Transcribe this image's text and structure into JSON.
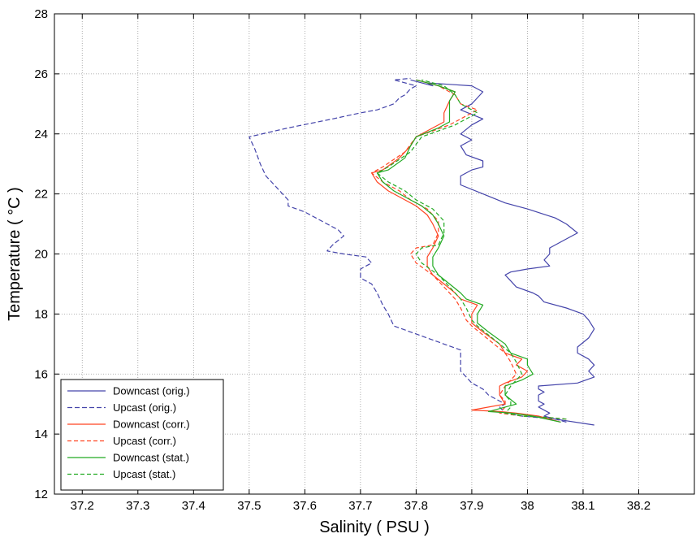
{
  "chart_data": {
    "type": "line",
    "title": "",
    "xlabel": "Salinity ( PSU )",
    "ylabel": "Temperature ( °C )",
    "xlim": [
      37.15,
      38.3
    ],
    "ylim": [
      12,
      28
    ],
    "xticks": [
      "37.2",
      "37.3",
      "37.4",
      "37.5",
      "37.6",
      "37.7",
      "37.8",
      "37.9",
      "38",
      "38.1",
      "38.2"
    ],
    "yticks": [
      "12",
      "14",
      "16",
      "18",
      "20",
      "22",
      "24",
      "26",
      "28"
    ],
    "grid": true,
    "legend_position": "bottom-left",
    "series": [
      {
        "name": "Downcast (orig.)",
        "color": "#4444aa",
        "dash": "solid",
        "points": [
          [
            38.12,
            14.3
          ],
          [
            38.05,
            14.5
          ],
          [
            38.03,
            14.6
          ],
          [
            38.04,
            14.7
          ],
          [
            38.02,
            14.9
          ],
          [
            38.03,
            15.0
          ],
          [
            38.02,
            15.1
          ],
          [
            38.02,
            15.2
          ],
          [
            38.02,
            15.3
          ],
          [
            38.03,
            15.4
          ],
          [
            38.02,
            15.5
          ],
          [
            38.02,
            15.6
          ],
          [
            38.09,
            15.7
          ],
          [
            38.12,
            15.9
          ],
          [
            38.11,
            16.1
          ],
          [
            38.12,
            16.3
          ],
          [
            38.11,
            16.5
          ],
          [
            38.09,
            16.7
          ],
          [
            38.09,
            16.9
          ],
          [
            38.11,
            17.2
          ],
          [
            38.12,
            17.5
          ],
          [
            38.11,
            17.8
          ],
          [
            38.1,
            18.0
          ],
          [
            38.07,
            18.2
          ],
          [
            38.03,
            18.4
          ],
          [
            38.02,
            18.6
          ],
          [
            38.01,
            18.7
          ],
          [
            37.98,
            18.9
          ],
          [
            37.97,
            19.1
          ],
          [
            37.96,
            19.3
          ],
          [
            37.97,
            19.4
          ],
          [
            38.0,
            19.5
          ],
          [
            38.04,
            19.6
          ],
          [
            38.03,
            19.8
          ],
          [
            38.04,
            20.0
          ],
          [
            38.04,
            20.2
          ],
          [
            38.07,
            20.5
          ],
          [
            38.09,
            20.7
          ],
          [
            38.07,
            21.0
          ],
          [
            38.05,
            21.2
          ],
          [
            38.0,
            21.5
          ],
          [
            37.96,
            21.7
          ],
          [
            37.92,
            22.0
          ],
          [
            37.88,
            22.3
          ],
          [
            37.88,
            22.6
          ],
          [
            37.9,
            22.8
          ],
          [
            37.92,
            22.9
          ],
          [
            37.92,
            23.1
          ],
          [
            37.89,
            23.3
          ],
          [
            37.88,
            23.6
          ],
          [
            37.9,
            23.8
          ],
          [
            37.88,
            24.0
          ],
          [
            37.9,
            24.3
          ],
          [
            37.92,
            24.5
          ],
          [
            37.88,
            24.8
          ],
          [
            37.9,
            25.0
          ],
          [
            37.91,
            25.2
          ],
          [
            37.92,
            25.4
          ],
          [
            37.9,
            25.6
          ],
          [
            37.86,
            25.65
          ],
          [
            37.82,
            25.7
          ],
          [
            37.83,
            25.6
          ],
          [
            37.79,
            25.8
          ]
        ]
      },
      {
        "name": "Upcast (orig.)",
        "color": "#4444aa",
        "dash": "6,3",
        "points": [
          [
            38.07,
            14.4
          ],
          [
            38.05,
            14.5
          ],
          [
            37.99,
            14.6
          ],
          [
            37.96,
            14.7
          ],
          [
            37.95,
            14.9
          ],
          [
            37.96,
            15.0
          ],
          [
            37.95,
            15.1
          ],
          [
            37.93,
            15.3
          ],
          [
            37.92,
            15.5
          ],
          [
            37.9,
            15.7
          ],
          [
            37.89,
            15.9
          ],
          [
            37.88,
            16.1
          ],
          [
            37.88,
            16.4
          ],
          [
            37.88,
            16.6
          ],
          [
            37.88,
            16.8
          ],
          [
            37.82,
            17.2
          ],
          [
            37.76,
            17.6
          ],
          [
            37.75,
            18.0
          ],
          [
            37.74,
            18.3
          ],
          [
            37.73,
            18.7
          ],
          [
            37.72,
            19.0
          ],
          [
            37.7,
            19.2
          ],
          [
            37.7,
            19.5
          ],
          [
            37.72,
            19.7
          ],
          [
            37.71,
            19.9
          ],
          [
            37.67,
            20.0
          ],
          [
            37.64,
            20.1
          ],
          [
            37.65,
            20.3
          ],
          [
            37.67,
            20.6
          ],
          [
            37.66,
            20.8
          ],
          [
            37.63,
            21.1
          ],
          [
            37.6,
            21.4
          ],
          [
            37.57,
            21.6
          ],
          [
            37.57,
            21.8
          ],
          [
            37.56,
            22.0
          ],
          [
            37.55,
            22.2
          ],
          [
            37.53,
            22.6
          ],
          [
            37.52,
            23.0
          ],
          [
            37.51,
            23.5
          ],
          [
            37.5,
            23.9
          ],
          [
            37.57,
            24.2
          ],
          [
            37.65,
            24.5
          ],
          [
            37.7,
            24.7
          ],
          [
            37.73,
            24.8
          ],
          [
            37.76,
            25.0
          ],
          [
            37.77,
            25.2
          ],
          [
            37.78,
            25.3
          ],
          [
            37.79,
            25.5
          ],
          [
            37.8,
            25.6
          ],
          [
            37.76,
            25.8
          ],
          [
            37.79,
            25.85
          ]
        ]
      },
      {
        "name": "Downcast (corr.)",
        "color": "#ff4422",
        "dash": "solid",
        "points": [
          [
            38.06,
            14.4
          ],
          [
            38.02,
            14.6
          ],
          [
            37.98,
            14.7
          ],
          [
            37.95,
            14.75
          ],
          [
            37.9,
            14.8
          ],
          [
            37.93,
            14.9
          ],
          [
            37.96,
            15.0
          ],
          [
            37.95,
            15.3
          ],
          [
            37.95,
            15.6
          ],
          [
            37.96,
            15.7
          ],
          [
            37.99,
            15.9
          ],
          [
            38.0,
            16.1
          ],
          [
            37.98,
            16.3
          ],
          [
            37.99,
            16.5
          ],
          [
            37.96,
            16.7
          ],
          [
            37.95,
            17.0
          ],
          [
            37.92,
            17.4
          ],
          [
            37.9,
            17.7
          ],
          [
            37.9,
            18.0
          ],
          [
            37.91,
            18.3
          ],
          [
            37.88,
            18.5
          ],
          [
            37.87,
            18.7
          ],
          [
            37.85,
            19.0
          ],
          [
            37.83,
            19.3
          ],
          [
            37.82,
            19.6
          ],
          [
            37.82,
            19.9
          ],
          [
            37.83,
            20.2
          ],
          [
            37.84,
            20.6
          ],
          [
            37.83,
            21.0
          ],
          [
            37.82,
            21.3
          ],
          [
            37.8,
            21.6
          ],
          [
            37.78,
            21.8
          ],
          [
            37.75,
            22.1
          ],
          [
            37.73,
            22.4
          ],
          [
            37.72,
            22.7
          ],
          [
            37.74,
            22.8
          ],
          [
            37.77,
            23.2
          ],
          [
            37.79,
            23.6
          ],
          [
            37.8,
            23.9
          ],
          [
            37.83,
            24.2
          ],
          [
            37.85,
            24.4
          ],
          [
            37.85,
            24.7
          ],
          [
            37.86,
            25.1
          ],
          [
            37.87,
            25.4
          ],
          [
            37.84,
            25.6
          ],
          [
            37.8,
            25.8
          ]
        ]
      },
      {
        "name": "Upcast (corr.)",
        "color": "#ff4422",
        "dash": "5,3",
        "points": [
          [
            38.07,
            14.5
          ],
          [
            38.04,
            14.55
          ],
          [
            37.99,
            14.6
          ],
          [
            37.95,
            14.7
          ],
          [
            37.96,
            14.9
          ],
          [
            37.96,
            15.1
          ],
          [
            37.95,
            15.3
          ],
          [
            37.96,
            15.6
          ],
          [
            37.98,
            16.0
          ],
          [
            37.97,
            16.4
          ],
          [
            37.96,
            16.7
          ],
          [
            37.94,
            17.0
          ],
          [
            37.92,
            17.3
          ],
          [
            37.9,
            17.6
          ],
          [
            37.89,
            17.8
          ],
          [
            37.88,
            18.2
          ],
          [
            37.87,
            18.5
          ],
          [
            37.85,
            18.9
          ],
          [
            37.83,
            19.3
          ],
          [
            37.8,
            19.7
          ],
          [
            37.79,
            20.0
          ],
          [
            37.8,
            20.2
          ],
          [
            37.83,
            20.3
          ],
          [
            37.84,
            20.7
          ],
          [
            37.84,
            21.1
          ],
          [
            37.82,
            21.5
          ],
          [
            37.79,
            21.8
          ],
          [
            37.77,
            22.1
          ],
          [
            37.74,
            22.4
          ],
          [
            37.72,
            22.7
          ],
          [
            37.74,
            22.9
          ],
          [
            37.78,
            23.4
          ],
          [
            37.8,
            23.9
          ],
          [
            37.86,
            24.3
          ],
          [
            37.91,
            24.8
          ],
          [
            37.88,
            25.0
          ],
          [
            37.87,
            25.3
          ],
          [
            37.84,
            25.6
          ],
          [
            37.8,
            25.8
          ]
        ]
      },
      {
        "name": "Downcast (stat.)",
        "color": "#22aa22",
        "dash": "solid",
        "points": [
          [
            38.06,
            14.4
          ],
          [
            38.01,
            14.6
          ],
          [
            37.97,
            14.7
          ],
          [
            37.93,
            14.75
          ],
          [
            37.96,
            14.9
          ],
          [
            37.98,
            15.0
          ],
          [
            37.96,
            15.3
          ],
          [
            37.96,
            15.6
          ],
          [
            37.99,
            15.8
          ],
          [
            38.01,
            16.0
          ],
          [
            38.0,
            16.3
          ],
          [
            38.0,
            16.5
          ],
          [
            37.97,
            16.7
          ],
          [
            37.96,
            17.0
          ],
          [
            37.93,
            17.4
          ],
          [
            37.91,
            17.7
          ],
          [
            37.91,
            18.0
          ],
          [
            37.92,
            18.3
          ],
          [
            37.89,
            18.5
          ],
          [
            37.88,
            18.7
          ],
          [
            37.86,
            19.0
          ],
          [
            37.84,
            19.3
          ],
          [
            37.83,
            19.6
          ],
          [
            37.83,
            19.9
          ],
          [
            37.84,
            20.2
          ],
          [
            37.85,
            20.6
          ],
          [
            37.84,
            21.0
          ],
          [
            37.83,
            21.3
          ],
          [
            37.81,
            21.6
          ],
          [
            37.79,
            21.8
          ],
          [
            37.76,
            22.1
          ],
          [
            37.74,
            22.4
          ],
          [
            37.73,
            22.7
          ],
          [
            37.75,
            22.8
          ],
          [
            37.78,
            23.2
          ],
          [
            37.79,
            23.6
          ],
          [
            37.8,
            23.9
          ],
          [
            37.84,
            24.2
          ],
          [
            37.86,
            24.4
          ],
          [
            37.86,
            24.7
          ],
          [
            37.86,
            25.1
          ],
          [
            37.87,
            25.4
          ],
          [
            37.84,
            25.6
          ],
          [
            37.8,
            25.8
          ]
        ]
      },
      {
        "name": "Upcast (stat.)",
        "color": "#22aa22",
        "dash": "5,3",
        "points": [
          [
            38.07,
            14.5
          ],
          [
            38.04,
            14.55
          ],
          [
            37.99,
            14.6
          ],
          [
            37.96,
            14.7
          ],
          [
            37.97,
            14.9
          ],
          [
            37.97,
            15.1
          ],
          [
            37.96,
            15.3
          ],
          [
            37.97,
            15.6
          ],
          [
            37.99,
            16.0
          ],
          [
            37.98,
            16.4
          ],
          [
            37.97,
            16.7
          ],
          [
            37.95,
            17.0
          ],
          [
            37.93,
            17.3
          ],
          [
            37.91,
            17.6
          ],
          [
            37.9,
            17.8
          ],
          [
            37.89,
            18.2
          ],
          [
            37.88,
            18.5
          ],
          [
            37.86,
            18.9
          ],
          [
            37.84,
            19.3
          ],
          [
            37.81,
            19.7
          ],
          [
            37.8,
            20.0
          ],
          [
            37.81,
            20.2
          ],
          [
            37.84,
            20.3
          ],
          [
            37.85,
            20.7
          ],
          [
            37.85,
            21.1
          ],
          [
            37.83,
            21.5
          ],
          [
            37.8,
            21.8
          ],
          [
            37.78,
            22.1
          ],
          [
            37.75,
            22.4
          ],
          [
            37.73,
            22.7
          ],
          [
            37.75,
            22.9
          ],
          [
            37.79,
            23.4
          ],
          [
            37.81,
            23.9
          ],
          [
            37.87,
            24.3
          ],
          [
            37.91,
            24.7
          ],
          [
            37.88,
            25.0
          ],
          [
            37.87,
            25.3
          ],
          [
            37.85,
            25.6
          ],
          [
            37.81,
            25.8
          ]
        ]
      }
    ]
  }
}
